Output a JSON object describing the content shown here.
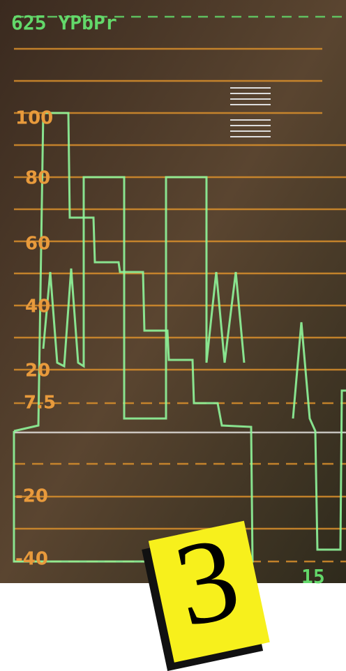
{
  "header": {
    "title": "625 YPbPr"
  },
  "scale": {
    "labels": [
      "100",
      "80",
      "60",
      "40",
      "20",
      "7.5",
      "-20",
      "-40"
    ]
  },
  "footer": {
    "line_number": "15"
  },
  "badge": {
    "text": "3"
  }
}
